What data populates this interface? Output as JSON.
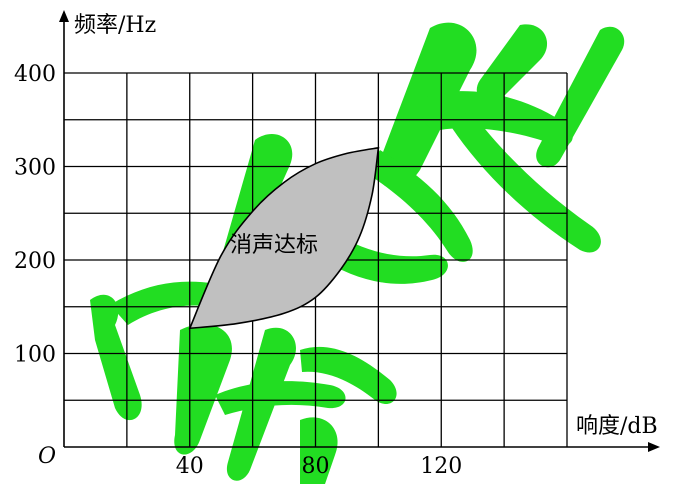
{
  "chart_data": {
    "type": "area",
    "ylabel": "频率/Hz",
    "xlabel": "响度/dB",
    "origin_label": "O",
    "xlim": [
      0,
      160
    ],
    "ylim": [
      0,
      400
    ],
    "x_grid_step": 20,
    "y_grid_step": 50,
    "x_ticks": [
      40,
      80,
      120
    ],
    "x_tick_labels": [
      "40",
      "80",
      "120"
    ],
    "y_ticks": [
      100,
      200,
      300,
      400
    ],
    "y_tick_labels": [
      "100",
      "200",
      "300",
      "400"
    ],
    "grid": true,
    "region": {
      "label": "消声达标",
      "fill": "#c0c0c0",
      "stroke": "#000000",
      "corners": [
        [
          40,
          127
        ],
        [
          100,
          320
        ]
      ],
      "upper_boundary": [
        [
          40,
          127
        ],
        [
          50,
          205
        ],
        [
          60,
          252
        ],
        [
          70,
          283
        ],
        [
          80,
          303
        ],
        [
          90,
          314
        ],
        [
          100,
          320
        ]
      ],
      "lower_boundary": [
        [
          100,
          320
        ],
        [
          98,
          270
        ],
        [
          94,
          225
        ],
        [
          88,
          190
        ],
        [
          80,
          160
        ],
        [
          70,
          143
        ],
        [
          55,
          132
        ],
        [
          40,
          127
        ]
      ]
    },
    "watermark_color": "#22dd22"
  }
}
